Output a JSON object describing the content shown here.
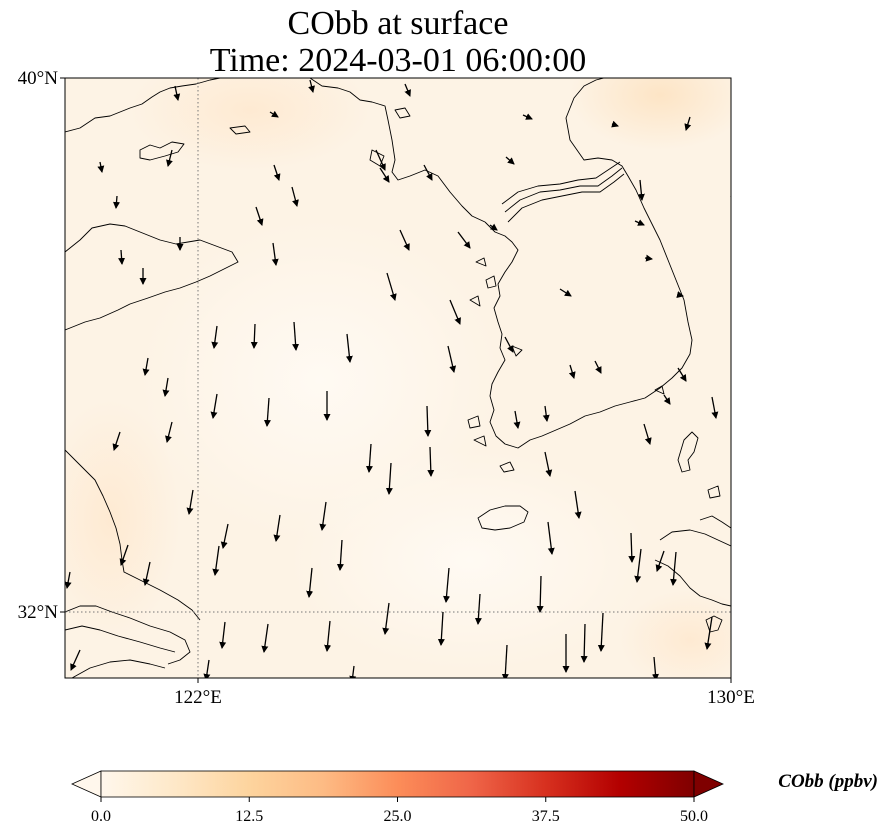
{
  "title": {
    "line1": "CObb at surface",
    "line2": "Time: 2024-03-01 06:00:00"
  },
  "map": {
    "projection": "PlateCarree",
    "lon_range": [
      119.7,
      130
    ],
    "lat_range": [
      30.8,
      40
    ],
    "gridlines": {
      "lons": [
        122
      ],
      "lats": [
        32
      ],
      "style": "dotted",
      "color": "#777777"
    },
    "tick_labels": {
      "x": [
        {
          "lon": 122,
          "label": "122°E"
        },
        {
          "lon": 130,
          "label": "130°E"
        }
      ],
      "y": [
        {
          "lat": 40,
          "label": "40°N"
        },
        {
          "lat": 32,
          "label": "32°N"
        }
      ]
    },
    "field_colors": {
      "background": "#fdf3e5",
      "light": "#fef8ef",
      "patch": "#fde6c8"
    },
    "coastline_color": "#000000",
    "wind_vectors_description": "black arrows, predominantly pointing south to south-southeast"
  },
  "colorbar": {
    "label": "CObb (ppbv)",
    "colormap": "OrRd",
    "ticks": [
      "0.0",
      "12.5",
      "25.0",
      "37.5",
      "50.0"
    ],
    "range": [
      0,
      50
    ],
    "extend": "both",
    "colors": [
      "#fff7ec",
      "#fee8c8",
      "#fdd49e",
      "#fdbb84",
      "#fc8d59",
      "#ef6548",
      "#d7301f",
      "#b30000",
      "#7f0000"
    ]
  }
}
